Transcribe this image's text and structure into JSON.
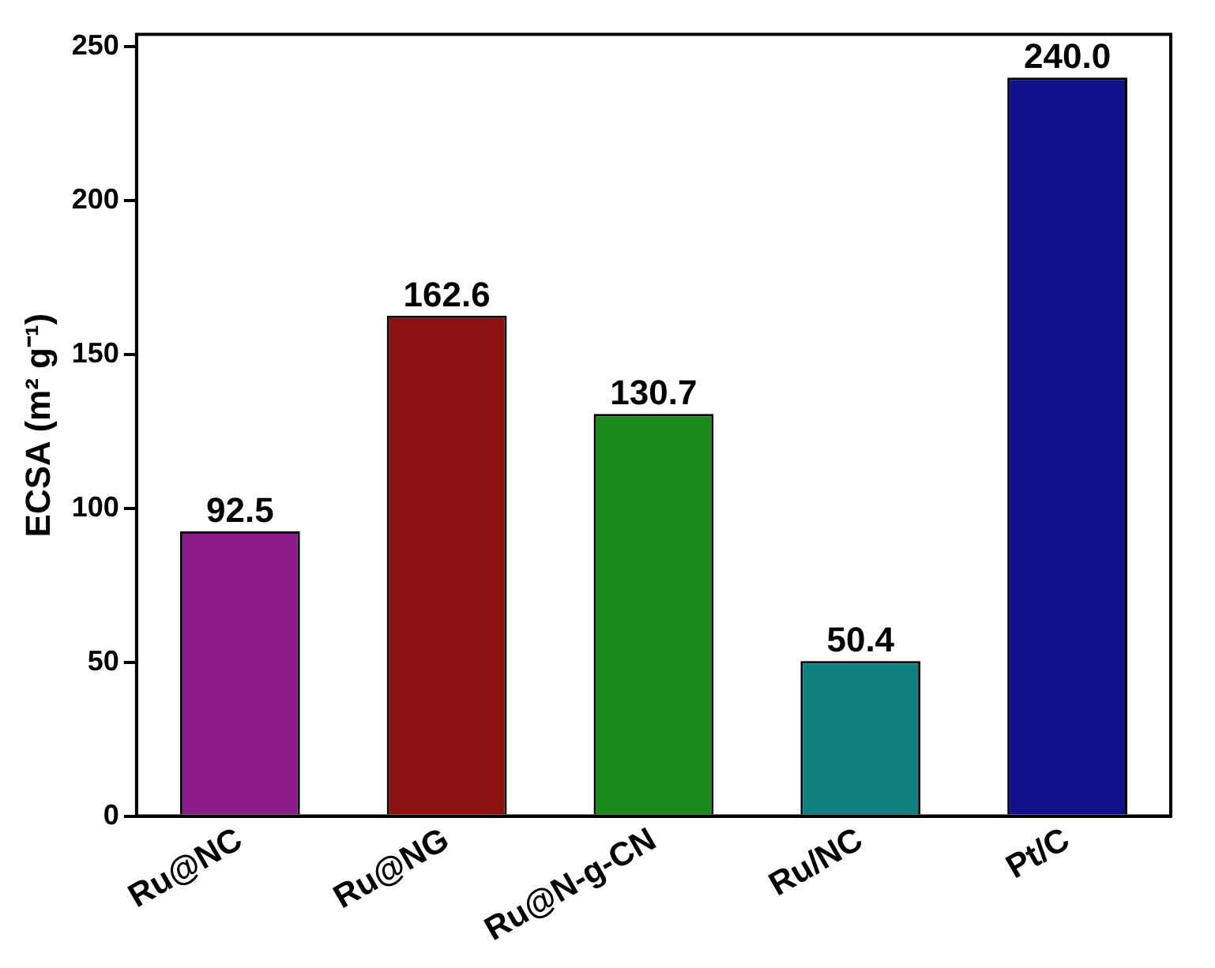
{
  "chart_data": {
    "type": "bar",
    "ylabel": "ECSA (m² g⁻¹)",
    "categories": [
      "Ru@NC",
      "Ru@NG",
      "Ru@N-g-CN",
      "Ru/NC",
      "Pt/C"
    ],
    "values": [
      92.5,
      162.6,
      130.7,
      50.4,
      240.0
    ],
    "colors": [
      "#8b1a8b",
      "#8b1010",
      "#1a8b1a",
      "#108080",
      "#10108b"
    ],
    "value_labels": [
      "92.5",
      "162.6",
      "130.7",
      "50.4",
      "240.0"
    ],
    "ylim": [
      0,
      254
    ],
    "yticks": [
      0,
      50,
      100,
      150,
      200,
      250
    ],
    "grid": false,
    "legend": false
  }
}
